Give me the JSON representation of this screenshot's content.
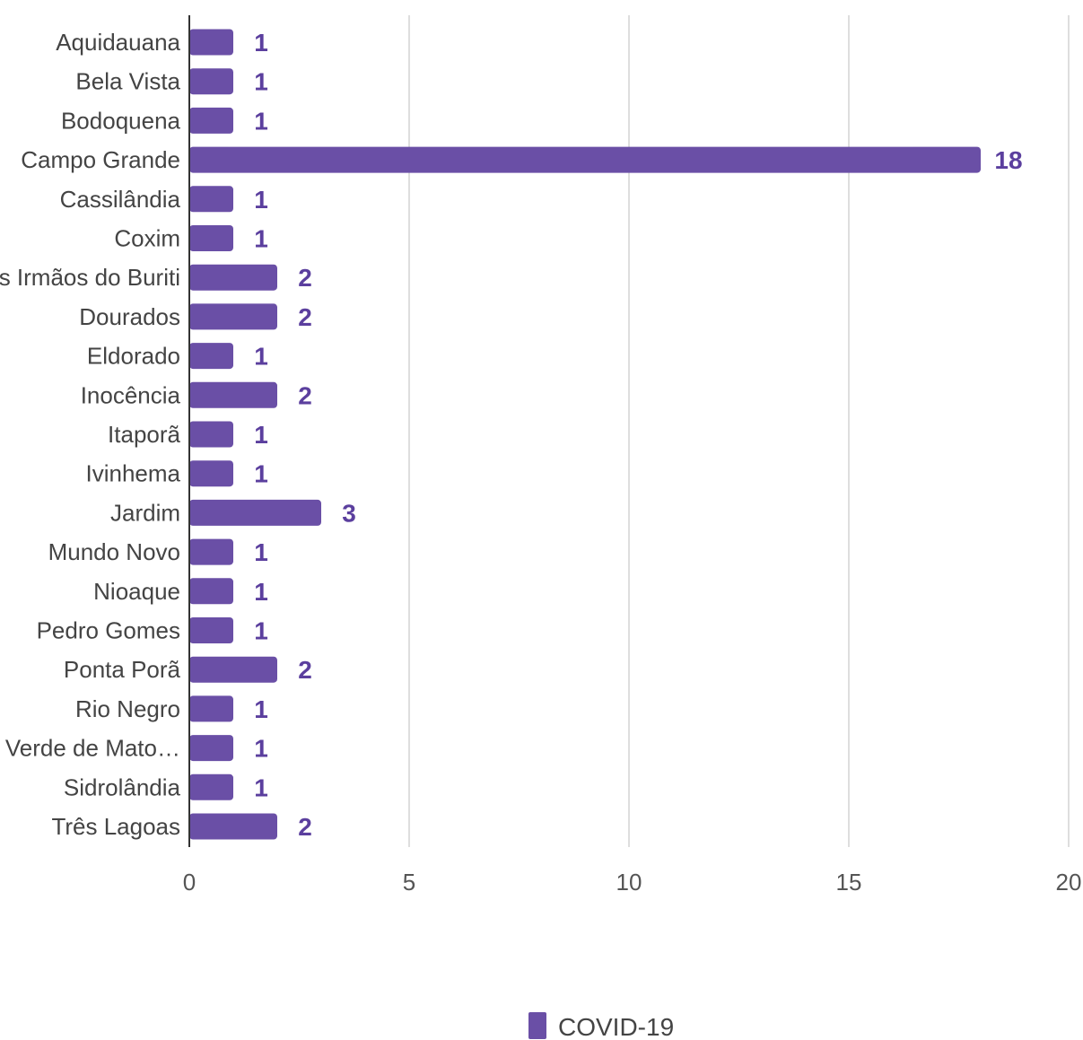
{
  "chart_data": {
    "type": "bar",
    "orientation": "horizontal",
    "categories": [
      "Aquidauana",
      "Bela Vista",
      "Bodoquena",
      "Campo Grande",
      "Cassilândia",
      "Coxim",
      "Dois Irmãos do Buriti",
      "Dourados",
      "Eldorado",
      "Inocência",
      "Itaporã",
      "Ivinhema",
      "Jardim",
      "Mundo Novo",
      "Nioaque",
      "Pedro Gomes",
      "Ponta Porã",
      "Rio Negro",
      "Rio Verde de Mato…",
      "Sidrolândia",
      "Três Lagoas"
    ],
    "series": [
      {
        "name": "COVID-19",
        "color": "#6a4fa6",
        "values": [
          1,
          1,
          1,
          18,
          1,
          1,
          2,
          2,
          1,
          2,
          1,
          1,
          3,
          1,
          1,
          1,
          2,
          1,
          1,
          1,
          2
        ]
      }
    ],
    "data_labels": [
      "1",
      "1",
      "1",
      "18",
      "1",
      "1",
      "2",
      "2",
      "1",
      "2",
      "1",
      "1",
      "3",
      "1",
      "1",
      "1",
      "2",
      "1",
      "1",
      "1",
      "2"
    ],
    "xlim": [
      0,
      20
    ],
    "xticks": [
      0,
      5,
      10,
      15,
      20
    ],
    "tick_labels": [
      "0",
      "5",
      "10",
      "15",
      "20"
    ],
    "grid": true,
    "legend": {
      "position": "bottom",
      "label": "COVID-19"
    },
    "title": "",
    "xlabel": "",
    "ylabel": ""
  },
  "colors": {
    "bar": "#6a4fa6",
    "data_label": "#5b3f9e",
    "grid": "#cccccc",
    "axis": "#333333"
  }
}
